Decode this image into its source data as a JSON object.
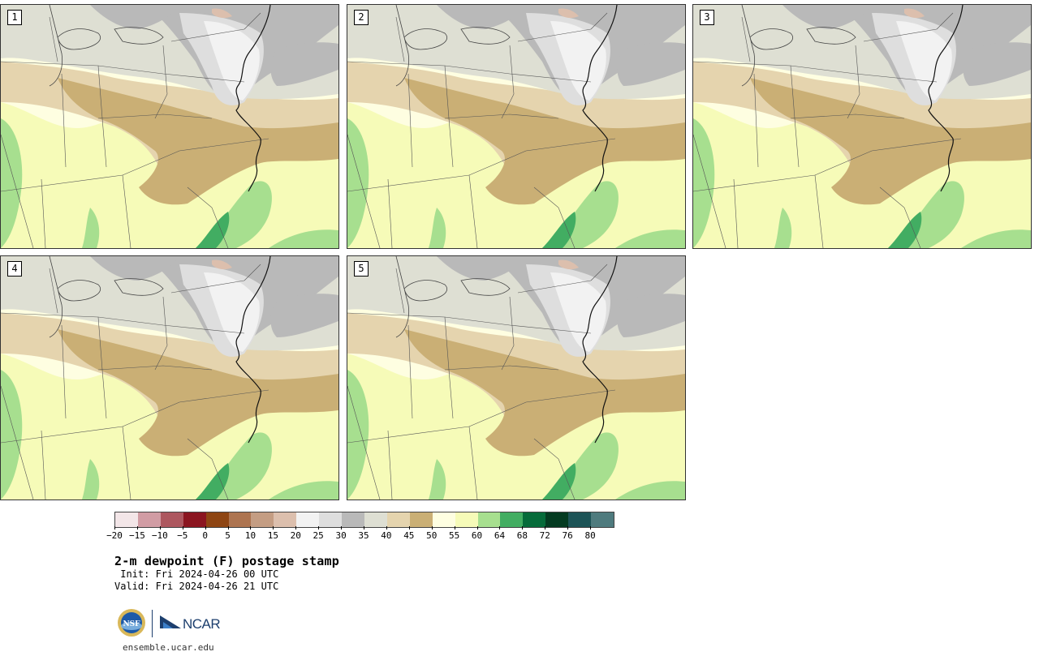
{
  "panels": [
    {
      "label": "1"
    },
    {
      "label": "2"
    },
    {
      "label": "3"
    },
    {
      "label": "4"
    },
    {
      "label": "5"
    }
  ],
  "colorbar": {
    "tick_labels": [
      "−20",
      "−15",
      "−10",
      "−5",
      "0",
      "5",
      "10",
      "15",
      "20",
      "25",
      "30",
      "35",
      "40",
      "45",
      "50",
      "55",
      "60",
      "64",
      "68",
      "72",
      "76",
      "80"
    ],
    "colors": [
      "#f3e6e8",
      "#d19ca4",
      "#ad575f",
      "#8b1520",
      "#8e4513",
      "#ad7450",
      "#c49d83",
      "#dcbfad",
      "#f2f2f2",
      "#dedede",
      "#b9b9b9",
      "#dedfd3",
      "#e5d4ae",
      "#caaf75",
      "#fefee1",
      "#f6fbb8",
      "#a7df8f",
      "#42ad62",
      "#066b3a",
      "#043b21",
      "#1d5457",
      "#4f7b7e"
    ]
  },
  "title": "2-m dewpoint (F) postage stamp",
  "init": " Init: Fri 2024-04-26 00 UTC",
  "valid": "Valid: Fri 2024-04-26 21 UTC",
  "logo": {
    "ncar_text": "NCAR",
    "nsf_text": "NSF"
  },
  "site": "ensemble.ucar.edu"
}
